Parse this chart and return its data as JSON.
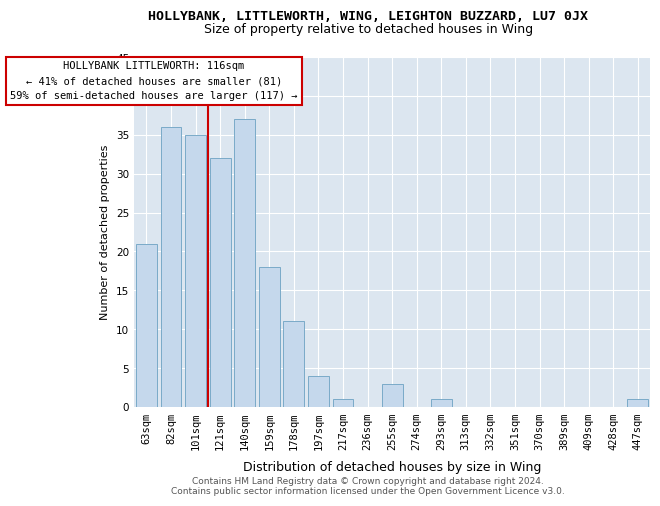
{
  "title": "HOLLYBANK, LITTLEWORTH, WING, LEIGHTON BUZZARD, LU7 0JX",
  "subtitle": "Size of property relative to detached houses in Wing",
  "xlabel": "Distribution of detached houses by size in Wing",
  "ylabel": "Number of detached properties",
  "categories": [
    "63sqm",
    "82sqm",
    "101sqm",
    "121sqm",
    "140sqm",
    "159sqm",
    "178sqm",
    "197sqm",
    "217sqm",
    "236sqm",
    "255sqm",
    "274sqm",
    "293sqm",
    "313sqm",
    "332sqm",
    "351sqm",
    "370sqm",
    "389sqm",
    "409sqm",
    "428sqm",
    "447sqm"
  ],
  "values": [
    21,
    36,
    35,
    32,
    37,
    18,
    11,
    4,
    1,
    0,
    3,
    0,
    1,
    0,
    0,
    0,
    0,
    0,
    0,
    0,
    1
  ],
  "bar_color": "#c5d8ec",
  "bar_edge_color": "#7aaac8",
  "vline_x": 2.5,
  "vline_color": "#cc0000",
  "annotation_text": "HOLLYBANK LITTLEWORTH: 116sqm\n← 41% of detached houses are smaller (81)\n59% of semi-detached houses are larger (117) →",
  "annotation_box_edge_color": "#cc0000",
  "ylim": [
    0,
    45
  ],
  "yticks": [
    0,
    5,
    10,
    15,
    20,
    25,
    30,
    35,
    40,
    45
  ],
  "bg_color": "#dce6f0",
  "footer_text": "Contains HM Land Registry data © Crown copyright and database right 2024.\nContains public sector information licensed under the Open Government Licence v3.0.",
  "title_fontsize": 9.5,
  "subtitle_fontsize": 9,
  "xlabel_fontsize": 9,
  "ylabel_fontsize": 8,
  "tick_fontsize": 7.5,
  "annot_fontsize": 7.5,
  "footer_fontsize": 6.5
}
